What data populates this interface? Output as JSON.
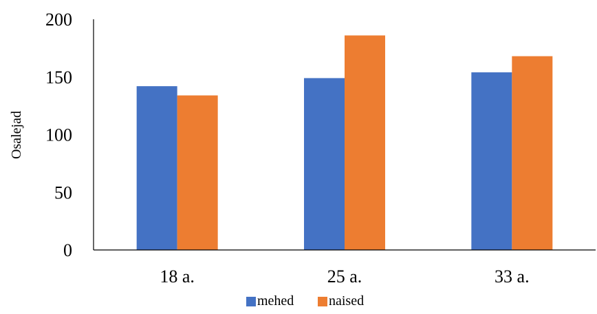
{
  "chart_data": {
    "type": "bar",
    "categories": [
      "18 a.",
      "25 a.",
      "33 a."
    ],
    "series": [
      {
        "name": "mehed",
        "values": [
          142,
          149,
          154
        ],
        "color": "#4472C4"
      },
      {
        "name": "naised",
        "values": [
          134,
          186,
          168
        ],
        "color": "#ED7D31"
      }
    ],
    "title": "",
    "xlabel": "",
    "ylabel": "Osalejad",
    "ylim": [
      0,
      200
    ],
    "yticks": [
      0,
      50,
      100,
      150,
      200
    ],
    "grid": false,
    "legend_position": "bottom"
  }
}
